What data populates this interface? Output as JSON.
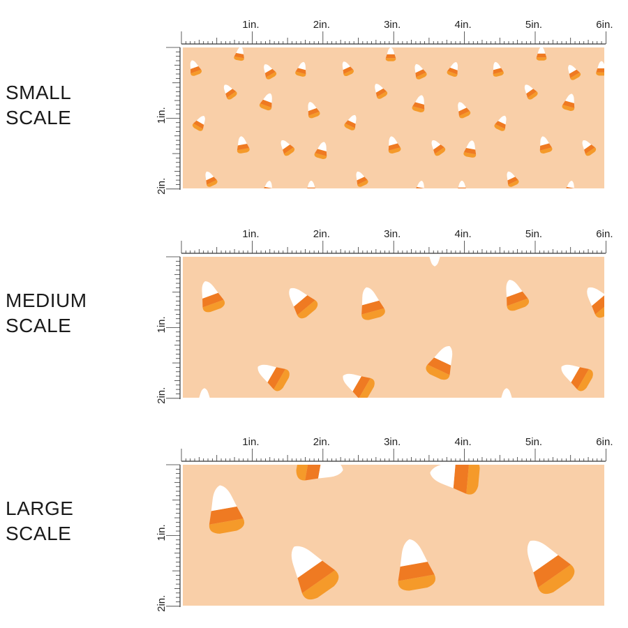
{
  "ruler": {
    "x_labels": [
      "1in.",
      "2in.",
      "3in.",
      "4in.",
      "5in.",
      "6in."
    ],
    "y_labels": [
      "1in.",
      "2in."
    ]
  },
  "colors": {
    "fabric_background": "#f9cfa8",
    "candy_white": "#ffffff",
    "candy_orange_dark": "#ef7a22",
    "candy_orange_light": "#f59a2a",
    "ruler_ink": "#333333"
  },
  "pattern": {
    "motif": "candy-corn"
  },
  "panels": [
    {
      "label_line1": "SMALL",
      "label_line2": "SCALE"
    },
    {
      "label_line1": "MEDIUM",
      "label_line2": "SCALE"
    },
    {
      "label_line1": "LARGE",
      "label_line2": "SCALE"
    }
  ]
}
